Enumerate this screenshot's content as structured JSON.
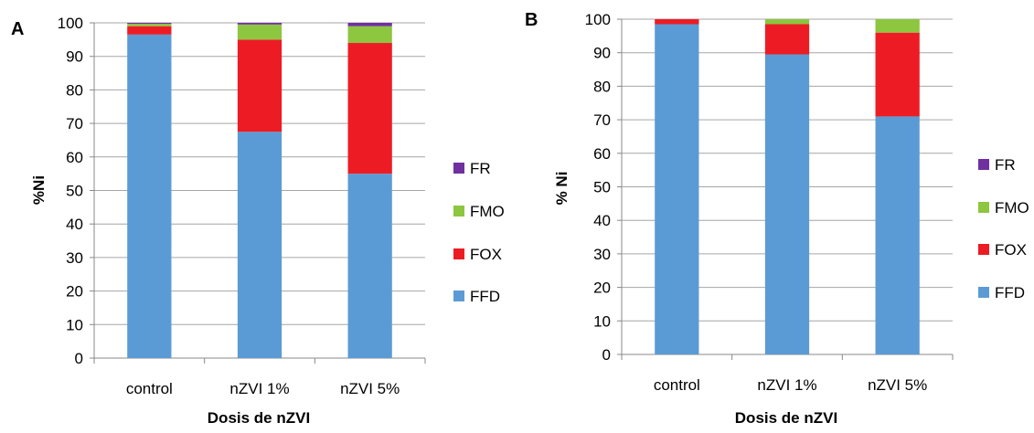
{
  "chart_data": [
    {
      "type": "bar",
      "stacked": true,
      "panel_label": "A",
      "categories": [
        "control",
        "nZVI 1%",
        "nZVI 5%"
      ],
      "series": [
        {
          "name": "FFD",
          "color": "#5b9bd5",
          "values": [
            96.5,
            67.5,
            55.0
          ]
        },
        {
          "name": "FOX",
          "color": "#ed1c24",
          "values": [
            2.5,
            27.5,
            39.0
          ]
        },
        {
          "name": "FMO",
          "color": "#8dc63f",
          "values": [
            0.7,
            4.5,
            5.0
          ]
        },
        {
          "name": "FR",
          "color": "#7030a0",
          "values": [
            0.3,
            0.5,
            1.0
          ]
        }
      ],
      "xlabel": "Dosis de nZVI",
      "ylabel": "%Ni",
      "ylim": [
        0,
        100
      ],
      "yticks": [
        "0",
        "10",
        "20",
        "30",
        "40",
        "50",
        "60",
        "70",
        "80",
        "90",
        "100"
      ],
      "grid": true,
      "legend_position": "right"
    },
    {
      "type": "bar",
      "stacked": true,
      "panel_label": "B",
      "categories": [
        "control",
        "nZVI 1%",
        "nZVI 5%"
      ],
      "series": [
        {
          "name": "FFD",
          "color": "#5b9bd5",
          "values": [
            98.5,
            89.5,
            71.0
          ]
        },
        {
          "name": "FOX",
          "color": "#ed1c24",
          "values": [
            1.5,
            9.0,
            25.0
          ]
        },
        {
          "name": "FMO",
          "color": "#8dc63f",
          "values": [
            0.0,
            1.5,
            4.0
          ]
        },
        {
          "name": "FR",
          "color": "#7030a0",
          "values": [
            0.0,
            0.0,
            0.0
          ]
        }
      ],
      "xlabel": "Dosis de nZVI",
      "ylabel": "% Ni",
      "ylim": [
        0,
        100
      ],
      "yticks": [
        "0",
        "10",
        "20",
        "30",
        "40",
        "50",
        "60",
        "70",
        "80",
        "90",
        "100"
      ],
      "grid": true,
      "legend_position": "right"
    }
  ],
  "legend_order": [
    "FR",
    "FMO",
    "FOX",
    "FFD"
  ],
  "colors": {
    "grid": "#a6a6a6",
    "axis": "#888888"
  }
}
